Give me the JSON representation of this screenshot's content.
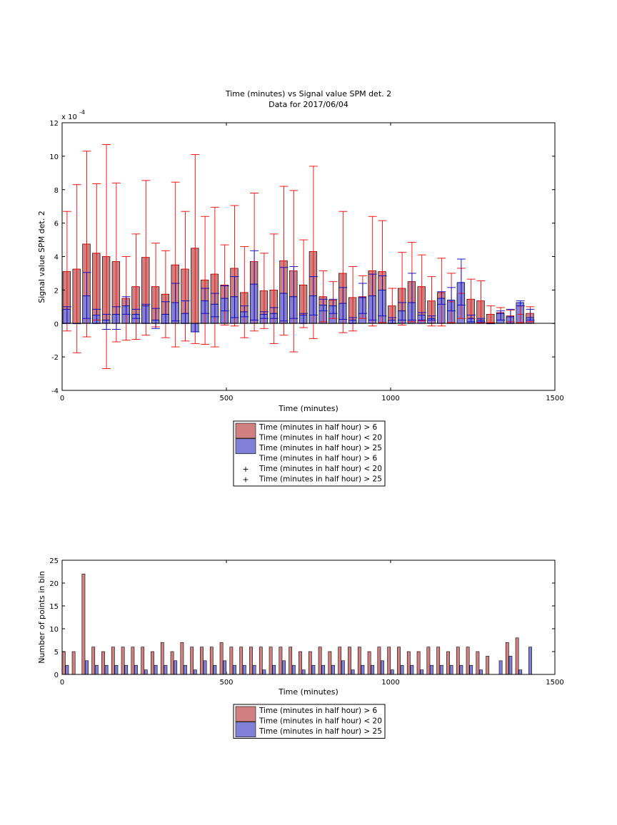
{
  "chart_data": [
    {
      "type": "bar",
      "title": "Time (minutes) vs Signal value SPM det. 2",
      "subtitle": "Data for 2017/06/04",
      "xlabel": "Time (minutes)",
      "ylabel": "Signal value SPM det. 2",
      "exponent_label": "x 10",
      "exponent_power": "-4",
      "xlim": [
        0,
        1500
      ],
      "ylim": [
        -4,
        12
      ],
      "xticks": [
        "0",
        "500",
        "1000",
        "1500"
      ],
      "yticks": [
        "-4",
        "-2",
        "0",
        "2",
        "4",
        "6",
        "8",
        "10",
        "12"
      ],
      "grid": false,
      "legend_position": "below",
      "legend": [
        "Time (minutes in half hour) > 6",
        "Time (minutes in half hour) < 20",
        "Time (minutes in half hour) > 25",
        "Time (minutes in half hour) > 6",
        "Time (minutes in half hour) < 20",
        "Time (minutes in half hour) > 25"
      ],
      "series": [
        {
          "color": "#d08080",
          "error_color": "#ff0000",
          "x": [
            15,
            45,
            75,
            105,
            135,
            165,
            195,
            225,
            255,
            285,
            315,
            345,
            375,
            405,
            435,
            465,
            495,
            525,
            555,
            585,
            615,
            645,
            675,
            705,
            735,
            765,
            795,
            825,
            855,
            885,
            915,
            945,
            975,
            1005,
            1035,
            1065,
            1095,
            1125,
            1155,
            1185,
            1215,
            1245,
            1275,
            1305,
            1335,
            1365,
            1395,
            1425
          ],
          "values": [
            3.1,
            3.25,
            4.75,
            4.2,
            4.0,
            3.7,
            1.5,
            2.2,
            3.95,
            2.2,
            1.75,
            3.5,
            3.25,
            4.5,
            2.6,
            2.95,
            2.3,
            3.3,
            1.85,
            3.7,
            1.95,
            2.0,
            3.75,
            3.15,
            2.3,
            4.3,
            1.6,
            1.4,
            3.0,
            1.55,
            1.6,
            3.15,
            3.1,
            1.05,
            2.1,
            2.5,
            2.2,
            1.35,
            1.85,
            1.3,
            1.8,
            1.45,
            1.35,
            0.55,
            0.65,
            0.45,
            0.55,
            0.6
          ],
          "err_low": [
            -0.45,
            -1.75,
            -0.8,
            0.2,
            -2.7,
            -1.1,
            -1.0,
            -0.95,
            -0.7,
            -0.2,
            -0.85,
            -1.4,
            -1.05,
            -1.2,
            -1.25,
            -1.4,
            -0.1,
            -0.15,
            -0.85,
            -0.45,
            -0.3,
            -1.2,
            -0.7,
            -1.7,
            -0.25,
            -0.9,
            0.1,
            0.3,
            -0.55,
            -0.45,
            0.3,
            -0.15,
            0.05,
            0.0,
            -0.1,
            0.1,
            0.15,
            -0.15,
            -0.15,
            0.05,
            0.3,
            0.3,
            0.05,
            0.05,
            0.2,
            0.1,
            0.05,
            0.1
          ],
          "err_high": [
            6.7,
            8.3,
            10.3,
            8.35,
            10.7,
            8.4,
            4.0,
            5.35,
            8.55,
            4.8,
            4.35,
            8.45,
            6.7,
            10.1,
            6.4,
            6.95,
            4.7,
            7.05,
            4.6,
            7.8,
            4.2,
            5.35,
            8.2,
            7.95,
            5.0,
            9.4,
            3.15,
            2.5,
            6.7,
            3.4,
            2.85,
            6.4,
            6.15,
            2.1,
            4.25,
            4.85,
            4.1,
            2.8,
            3.9,
            3.0,
            3.3,
            2.65,
            2.55,
            1.05,
            0.95,
            0.8,
            1.05,
            1.0
          ]
        },
        {
          "color": "#8080d8",
          "error_color": "#0000cc",
          "x": [
            15,
            45,
            75,
            105,
            135,
            165,
            195,
            225,
            255,
            285,
            315,
            345,
            375,
            405,
            435,
            465,
            495,
            525,
            555,
            585,
            615,
            645,
            675,
            705,
            735,
            765,
            795,
            825,
            855,
            885,
            915,
            945,
            975,
            1005,
            1035,
            1065,
            1095,
            1125,
            1155,
            1185,
            1215,
            1245,
            1275,
            1305,
            1335,
            1365,
            1395,
            1425
          ],
          "values": [
            0.85,
            0.0,
            1.65,
            0.5,
            0.2,
            0.55,
            1.05,
            0.55,
            1.05,
            0.2,
            0.55,
            1.25,
            0.6,
            -0.5,
            1.35,
            1.15,
            1.5,
            1.6,
            0.7,
            2.35,
            0.55,
            0.6,
            1.8,
            1.6,
            0.5,
            1.65,
            1.1,
            1.05,
            1.2,
            0.2,
            1.55,
            1.65,
            2.0,
            0.2,
            0.75,
            1.25,
            0.5,
            0.3,
            1.5,
            1.4,
            2.45,
            0.3,
            0.2,
            0.0,
            0.6,
            0.4,
            1.25,
            0.35
          ],
          "err_low": [
            0.0,
            0.0,
            0.3,
            0.0,
            -0.35,
            -0.35,
            0.55,
            0.3,
            0.0,
            -0.3,
            0.0,
            0.15,
            0.0,
            -0.5,
            0.6,
            0.4,
            0.75,
            0.35,
            0.4,
            0.2,
            0.3,
            0.3,
            0.15,
            0.3,
            0.0,
            0.5,
            0.75,
            0.6,
            0.25,
            0.0,
            0.6,
            0.2,
            0.45,
            0.0,
            0.2,
            0.2,
            0.2,
            0.2,
            1.15,
            0.75,
            1.1,
            0.1,
            0.1,
            0.0,
            0.2,
            0.0,
            1.05,
            0.2
          ],
          "err_high": [
            1.0,
            0.0,
            3.05,
            0.85,
            0.55,
            1.0,
            1.6,
            0.85,
            1.15,
            0.9,
            1.3,
            2.4,
            1.35,
            0.0,
            2.1,
            1.8,
            2.25,
            2.8,
            1.05,
            4.35,
            0.7,
            0.95,
            3.35,
            3.4,
            0.6,
            2.8,
            1.45,
            1.45,
            2.15,
            0.35,
            2.4,
            2.95,
            2.85,
            0.35,
            1.25,
            3.0,
            0.65,
            0.45,
            1.9,
            2.15,
            3.85,
            0.5,
            0.3,
            0.0,
            0.75,
            0.85,
            1.35,
            0.85
          ]
        }
      ]
    },
    {
      "type": "bar",
      "xlabel": "Time (minutes)",
      "ylabel": "Number of points in bin",
      "xlim": [
        0,
        1500
      ],
      "ylim": [
        0,
        25
      ],
      "xticks": [
        "0",
        "500",
        "1000",
        "1500"
      ],
      "yticks": [
        "0",
        "5",
        "10",
        "15",
        "20",
        "25"
      ],
      "grid": false,
      "legend_position": "below",
      "legend": [
        "Time (minutes in half hour) > 6",
        "Time (minutes in half hour) < 20",
        "Time (minutes in half hour) > 25"
      ],
      "series": [
        {
          "color": "#d08080",
          "x": [
            5,
            35,
            65,
            95,
            125,
            155,
            185,
            215,
            245,
            275,
            305,
            335,
            365,
            395,
            425,
            455,
            485,
            515,
            545,
            575,
            605,
            635,
            665,
            695,
            725,
            755,
            785,
            815,
            845,
            875,
            905,
            935,
            965,
            995,
            1025,
            1055,
            1085,
            1115,
            1145,
            1175,
            1205,
            1235,
            1265,
            1295,
            1325,
            1355,
            1385,
            1415
          ],
          "values": [
            5,
            5,
            22,
            6,
            5,
            6,
            6,
            6,
            6,
            5,
            7,
            5,
            7,
            6,
            6,
            6,
            7,
            6,
            6,
            6,
            6,
            6,
            6,
            6,
            5,
            5,
            6,
            5,
            6,
            6,
            6,
            5,
            6,
            6,
            6,
            5,
            5,
            6,
            6,
            5,
            6,
            6,
            5,
            4,
            0,
            7,
            8,
            0
          ]
        },
        {
          "color": "#8080d8",
          "x": [
            15,
            45,
            75,
            105,
            135,
            165,
            195,
            225,
            255,
            285,
            315,
            345,
            375,
            405,
            435,
            465,
            495,
            525,
            555,
            585,
            615,
            645,
            675,
            705,
            735,
            765,
            795,
            825,
            855,
            885,
            915,
            945,
            975,
            1005,
            1035,
            1065,
            1095,
            1125,
            1155,
            1185,
            1215,
            1245,
            1275,
            1305,
            1335,
            1365,
            1395,
            1425
          ],
          "values": [
            2,
            0,
            3,
            2,
            2,
            2,
            2,
            2,
            1,
            2,
            2,
            3,
            2,
            1,
            3,
            2,
            3,
            2,
            2,
            2,
            1,
            2,
            3,
            2,
            1,
            2,
            2,
            2,
            3,
            1,
            2,
            2,
            3,
            1,
            2,
            2,
            1,
            2,
            2,
            2,
            2,
            2,
            1,
            0,
            3,
            4,
            1,
            6
          ]
        }
      ]
    }
  ]
}
